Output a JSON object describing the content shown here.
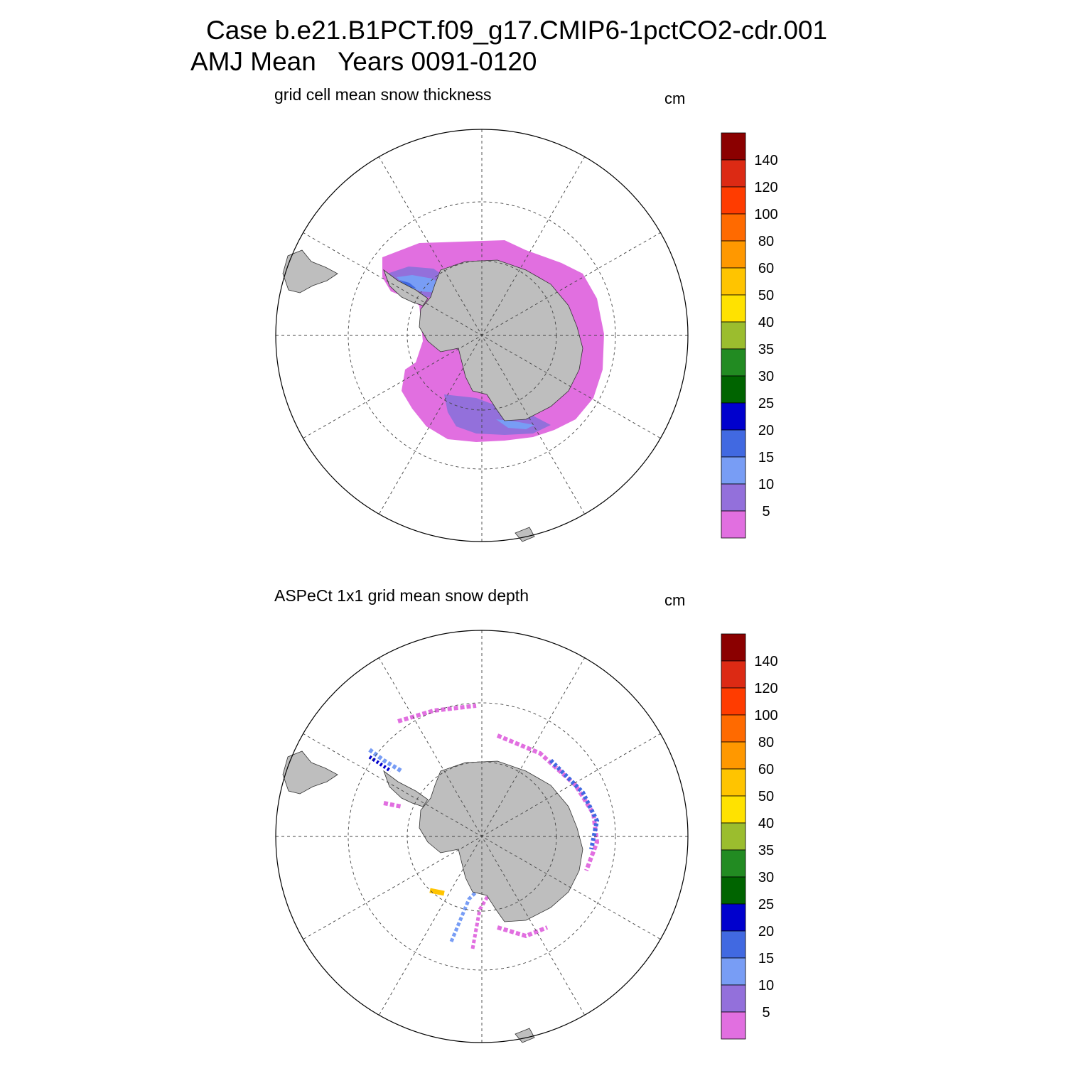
{
  "header": {
    "case_line": "Case b.e21.B1PCT.f09_g17.CMIP6-1pctCO2-cdr.001",
    "period_line": "AMJ Mean   Years 0091-0120"
  },
  "panels": [
    {
      "title": "grid cell mean snow thickness",
      "units": "cm",
      "colorbar": {
        "labels": [
          "140",
          "120",
          "100",
          "80",
          "60",
          "50",
          "40",
          "35",
          "30",
          "25",
          "20",
          "15",
          "10",
          "5"
        ]
      }
    },
    {
      "title": "ASPeCt 1x1 grid mean snow depth",
      "units": "cm",
      "colorbar": {
        "labels": [
          "140",
          "120",
          "100",
          "80",
          "60",
          "50",
          "40",
          "35",
          "30",
          "25",
          "20",
          "15",
          "10",
          "5"
        ]
      }
    }
  ],
  "colors": {
    "levels": [
      "#8b0000",
      "#dc2a14",
      "#ff3c00",
      "#ff6a00",
      "#ff9800",
      "#ffc400",
      "#ffe200",
      "#9bbd2e",
      "#228b22",
      "#006400",
      "#0000cd",
      "#4169e1",
      "#789df5",
      "#9370db",
      "#e16fe0"
    ],
    "land": "#bebebe"
  }
}
